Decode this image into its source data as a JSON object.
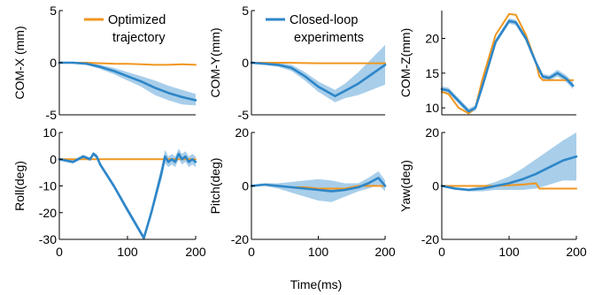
{
  "colors": {
    "optimized": "#F0961E",
    "closed_loop": "#2E86C8",
    "band": "#9EC9E8"
  },
  "shared_xlabel": "Time(ms)",
  "chart_data": [
    {
      "type": "line",
      "ylabel": "COM-X (mm)",
      "xlim": [
        0,
        200
      ],
      "ylim": [
        -5,
        5
      ],
      "xticks": [],
      "yticks": [
        -5,
        0,
        5
      ],
      "ytick_labels": [
        "-5",
        "0",
        "5"
      ],
      "legend": {
        "name": "Optimized trajectory",
        "lines": [
          "Optimized",
          "trajectory"
        ],
        "series": "optimized"
      },
      "series": [
        {
          "name": "Optimized trajectory",
          "color_key": "optimized",
          "x": [
            0,
            20,
            40,
            60,
            80,
            100,
            120,
            140,
            160,
            180,
            200
          ],
          "y": [
            0,
            0,
            0,
            -0.05,
            -0.1,
            -0.1,
            -0.15,
            -0.2,
            -0.2,
            -0.15,
            -0.2
          ]
        },
        {
          "name": "Closed-loop experiments",
          "color_key": "closed_loop",
          "x": [
            0,
            20,
            40,
            60,
            80,
            100,
            120,
            140,
            160,
            180,
            200
          ],
          "y": [
            0,
            0,
            -0.1,
            -0.4,
            -0.8,
            -1.3,
            -1.8,
            -2.4,
            -2.9,
            -3.3,
            -3.6
          ],
          "lower": [
            0,
            -0.1,
            -0.2,
            -0.6,
            -1.1,
            -1.7,
            -2.3,
            -3.1,
            -3.6,
            -4.0,
            -4.1
          ],
          "upper": [
            0,
            0.1,
            0,
            -0.2,
            -0.5,
            -0.9,
            -1.3,
            -1.7,
            -2.2,
            -2.6,
            -3.0
          ]
        }
      ]
    },
    {
      "type": "line",
      "ylabel": "COM-Y(mm)",
      "xlim": [
        0,
        200
      ],
      "ylim": [
        -5,
        5
      ],
      "xticks": [],
      "yticks": [
        -5,
        0,
        5
      ],
      "ytick_labels": [
        "-5",
        "0",
        "5"
      ],
      "legend": {
        "name": "Closed-loop experiments",
        "lines": [
          "Closed-loop",
          "experiments"
        ],
        "series": "closed_loop"
      },
      "series": [
        {
          "name": "Optimized trajectory",
          "color_key": "optimized",
          "x": [
            0,
            50,
            100,
            150,
            200
          ],
          "y": [
            0,
            0,
            -0.05,
            -0.05,
            -0.05
          ]
        },
        {
          "name": "Closed-loop experiments",
          "color_key": "closed_loop",
          "x": [
            0,
            20,
            40,
            60,
            80,
            100,
            125,
            140,
            160,
            180,
            200
          ],
          "y": [
            0,
            -0.1,
            -0.2,
            -0.5,
            -1.3,
            -2.3,
            -3.2,
            -2.7,
            -2.0,
            -1.1,
            -0.2
          ],
          "lower": [
            -0.1,
            -0.2,
            -0.4,
            -0.8,
            -1.7,
            -2.8,
            -3.8,
            -3.4,
            -3.1,
            -2.6,
            -2.1
          ],
          "upper": [
            0.1,
            0,
            0,
            -0.2,
            -0.9,
            -1.8,
            -2.6,
            -2.0,
            -0.9,
            0.4,
            1.7
          ]
        }
      ]
    },
    {
      "type": "line",
      "ylabel": "COM-Z(mm)",
      "xlim": [
        0,
        200
      ],
      "ylim": [
        9,
        24
      ],
      "xticks": [],
      "yticks": [
        10,
        15,
        20
      ],
      "ytick_labels": [
        "10",
        "15",
        "20"
      ],
      "series": [
        {
          "name": "Optimized trajectory",
          "color_key": "optimized",
          "x": [
            0,
            10,
            25,
            40,
            50,
            60,
            80,
            100,
            110,
            125,
            140,
            145,
            150,
            170,
            195
          ],
          "y": [
            12.3,
            12.0,
            10.0,
            9.2,
            10.0,
            14.0,
            20.5,
            23.5,
            23.4,
            20.5,
            16.5,
            14.5,
            14.0,
            14.0,
            14.0
          ]
        },
        {
          "name": "Closed-loop experiments",
          "color_key": "closed_loop",
          "x": [
            0,
            10,
            25,
            40,
            50,
            60,
            80,
            100,
            110,
            125,
            140,
            150,
            160,
            172,
            185,
            195
          ],
          "y": [
            12.7,
            12.5,
            11.0,
            9.5,
            10.0,
            13.0,
            19.5,
            22.5,
            22.3,
            20.0,
            16.5,
            14.5,
            14.3,
            15.0,
            14.2,
            13.2
          ],
          "lower": [
            12.3,
            12.1,
            10.6,
            9.1,
            9.6,
            12.6,
            19.1,
            22.1,
            21.9,
            19.6,
            16.1,
            14.1,
            13.9,
            14.5,
            13.7,
            12.7
          ],
          "upper": [
            13.1,
            12.9,
            11.4,
            9.9,
            10.4,
            13.4,
            19.9,
            22.9,
            22.7,
            20.4,
            16.9,
            14.9,
            14.7,
            15.5,
            14.7,
            13.7
          ]
        }
      ]
    },
    {
      "type": "line",
      "ylabel": "Roll(deg)",
      "xlim": [
        0,
        200
      ],
      "ylim": [
        -30,
        10
      ],
      "xticks": [
        0,
        100,
        200
      ],
      "xtick_labels": [
        "0",
        "100",
        "200"
      ],
      "yticks": [
        -30,
        -20,
        -10,
        0,
        10
      ],
      "ytick_labels": [
        "-30",
        "-20",
        "-10",
        "0",
        "10"
      ],
      "series": [
        {
          "name": "Optimized trajectory",
          "color_key": "optimized",
          "x": [
            0,
            50,
            100,
            150,
            200
          ],
          "y": [
            0,
            0,
            0,
            0,
            0
          ]
        },
        {
          "name": "Closed-loop experiments",
          "color_key": "closed_loop",
          "x": [
            0,
            20,
            35,
            45,
            50,
            55,
            60,
            80,
            100,
            124,
            135,
            150,
            155,
            160,
            165,
            170,
            175,
            180,
            185,
            190,
            195,
            200
          ],
          "y": [
            0,
            -1,
            1,
            0,
            2,
            1,
            -2,
            -10,
            -19,
            -29.5,
            -20,
            -5,
            1,
            -1,
            0,
            -1,
            2,
            0,
            1,
            -1,
            0,
            -1
          ],
          "lower": [
            -0.5,
            -1.6,
            0.3,
            -0.7,
            1.2,
            0.2,
            -2.8,
            -10.9,
            -20,
            -30.5,
            -21.5,
            -7.5,
            -1.5,
            -3,
            -2,
            -3,
            0,
            -2,
            -1,
            -3,
            -2,
            -3
          ],
          "upper": [
            0.5,
            -0.4,
            1.7,
            0.7,
            2.8,
            1.8,
            -1.2,
            -9.1,
            -18,
            -28.5,
            -18.5,
            -2.5,
            3.5,
            1,
            2,
            1,
            4,
            2,
            3,
            1,
            2,
            1
          ]
        }
      ]
    },
    {
      "type": "line",
      "ylabel": "Pitch(deg)",
      "xlim": [
        0,
        200
      ],
      "ylim": [
        -20,
        20
      ],
      "xticks": [
        0,
        100,
        200
      ],
      "xtick_labels": [
        "0",
        "100",
        "200"
      ],
      "yticks": [
        -20,
        0,
        20
      ],
      "ytick_labels": [
        "-20",
        "0",
        "20"
      ],
      "series": [
        {
          "name": "Optimized trajectory",
          "color_key": "optimized",
          "x": [
            0,
            20,
            40,
            60,
            80,
            100,
            120,
            140,
            160,
            180,
            200
          ],
          "y": [
            0,
            0.5,
            0,
            -0.5,
            -0.5,
            -1,
            -1,
            -1,
            0,
            0,
            0
          ]
        },
        {
          "name": "Closed-loop experiments",
          "color_key": "closed_loop",
          "x": [
            0,
            20,
            40,
            60,
            80,
            100,
            120,
            140,
            160,
            175,
            190,
            200
          ],
          "y": [
            0,
            0.5,
            0,
            -0.5,
            -1,
            -1.5,
            -2,
            -1.5,
            -0.5,
            1,
            3,
            0
          ],
          "lower": [
            -0.5,
            0,
            -1,
            -2.5,
            -4,
            -5.5,
            -6,
            -4,
            -2,
            -1,
            0.5,
            -2
          ],
          "upper": [
            0.5,
            1,
            1,
            1.5,
            2,
            2.5,
            2,
            1,
            1,
            3,
            5.5,
            2
          ]
        }
      ]
    },
    {
      "type": "line",
      "ylabel": "Yaw(deg)",
      "xlim": [
        0,
        200
      ],
      "ylim": [
        -20,
        20
      ],
      "xticks": [
        0,
        100,
        200
      ],
      "xtick_labels": [
        "0",
        "100",
        "200"
      ],
      "yticks": [
        -20,
        0,
        20
      ],
      "ytick_labels": [
        "-20",
        "0",
        "20"
      ],
      "series": [
        {
          "name": "Optimized trajectory",
          "color_key": "optimized",
          "x": [
            0,
            40,
            80,
            120,
            140,
            145,
            150,
            200
          ],
          "y": [
            0,
            0,
            0,
            0.5,
            1,
            -1,
            -1,
            -1
          ]
        },
        {
          "name": "Closed-loop experiments",
          "color_key": "closed_loop",
          "x": [
            0,
            20,
            40,
            60,
            80,
            100,
            120,
            140,
            160,
            180,
            200
          ],
          "y": [
            0,
            -1,
            -1.5,
            -1,
            0,
            1,
            2.5,
            4.5,
            7,
            9.5,
            11
          ],
          "lower": [
            -0.5,
            -1.5,
            -2,
            -2,
            -1.5,
            -1.5,
            -1.5,
            -1,
            0.5,
            2,
            2
          ],
          "upper": [
            0.5,
            -0.5,
            -1,
            0,
            1.5,
            3.5,
            6.5,
            10,
            13.5,
            17,
            20
          ]
        }
      ]
    }
  ]
}
